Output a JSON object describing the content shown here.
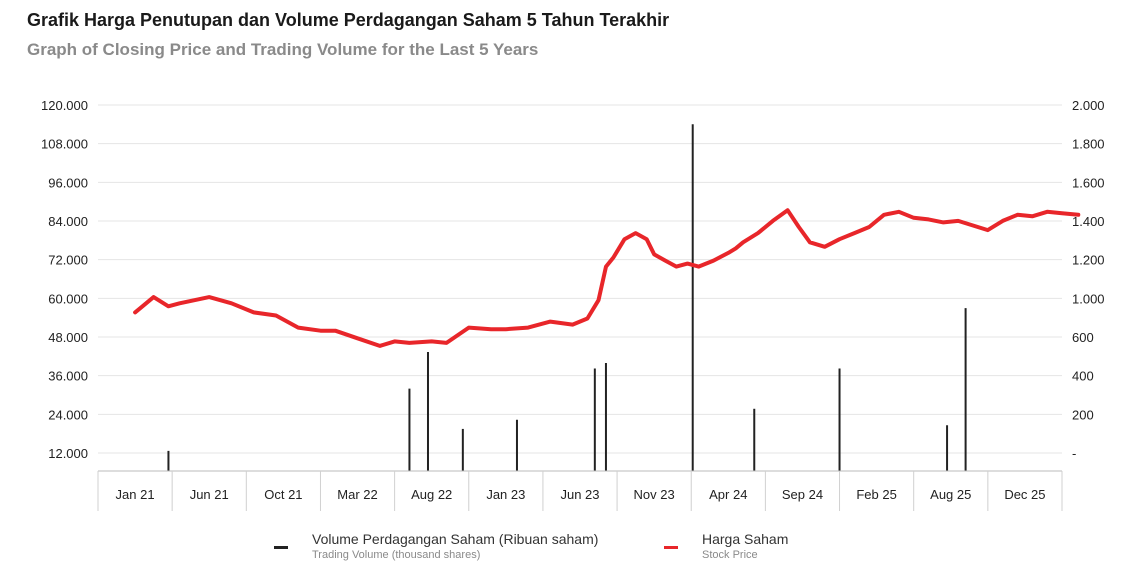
{
  "header": {
    "title": "Grafik Harga Penutupan dan Volume Perdagangan Saham 5 Tahun Terakhir",
    "subtitle": "Graph of Closing Price and Trading Volume for the Last 5 Years"
  },
  "legend": {
    "volume": {
      "label": "Volume Perdagangan Saham (Ribuan saham)",
      "sublabel": "Trading Volume (thousand shares)",
      "color": "#222222"
    },
    "price": {
      "label": "Harga Saham",
      "sublabel": "Stock Price",
      "color": "#e8262a"
    }
  },
  "chart_data": {
    "type": "line",
    "x_tick_labels": [
      "Jan 21",
      "Jun 21",
      "Oct 21",
      "Mar 22",
      "Aug 22",
      "Jan 23",
      "Jun 23",
      "Nov 23",
      "Apr 24",
      "Sep 24",
      "Feb 25",
      "Aug 25",
      "Dec 25"
    ],
    "left_axis": {
      "ticks": [
        "120.000",
        "108.000",
        "96.000",
        "84.000",
        "72.000",
        "60.000",
        "48.000",
        "36.000",
        "24.000",
        "12.000"
      ],
      "ylim": [
        0,
        120000
      ]
    },
    "right_axis": {
      "ticks": [
        "2.000",
        "1.800",
        "1.600",
        "1.400",
        "1.200",
        "1.000",
        "600",
        "400",
        "200",
        "-"
      ],
      "ylim": [
        0,
        2000
      ]
    },
    "grid": true,
    "legend_position": "bottom",
    "series": [
      {
        "name": "Harga Saham",
        "axis": "left",
        "color": "#e8262a",
        "x": [
          0,
          0.1,
          0.25,
          0.45,
          0.6,
          1.0,
          1.3,
          1.6,
          1.9,
          2.2,
          2.5,
          2.7,
          3.0,
          3.3,
          3.5,
          3.7,
          4.0,
          4.2,
          4.5,
          4.8,
          5.0,
          5.3,
          5.6,
          5.9,
          6.1,
          6.25,
          6.35,
          6.45,
          6.6,
          6.75,
          6.9,
          7.0,
          7.15,
          7.3,
          7.45,
          7.6,
          7.8,
          8.0,
          8.1,
          8.2,
          8.4,
          8.6,
          8.8,
          8.95,
          9.1,
          9.3,
          9.5,
          9.7,
          9.9,
          10.1,
          10.3,
          10.5,
          10.7,
          10.9,
          11.1,
          11.3,
          11.5,
          11.7,
          11.9,
          12.1,
          12.3,
          12.5,
          12.72
        ],
        "y": [
          52000,
          54000,
          57000,
          54000,
          55000,
          57000,
          55000,
          52000,
          51000,
          47000,
          46000,
          46000,
          43500,
          41000,
          42500,
          42000,
          42500,
          42000,
          47000,
          46500,
          46500,
          47000,
          49000,
          48000,
          50000,
          56000,
          67000,
          70000,
          76000,
          78000,
          76000,
          71000,
          69000,
          67000,
          68000,
          67000,
          69000,
          71500,
          73000,
          75000,
          78000,
          82000,
          85500,
          80000,
          75000,
          73500,
          76000,
          78000,
          80000,
          84000,
          85000,
          83000,
          82500,
          81500,
          82000,
          80500,
          79000,
          82000,
          84000,
          83500,
          85000,
          84500,
          84000
        ]
      },
      {
        "name": "Volume Perdagangan Saham",
        "axis": "right",
        "color": "#222222",
        "x": [
          0.45,
          3.7,
          3.95,
          4.42,
          5.15,
          6.2,
          6.35,
          7.52,
          8.35,
          9.5,
          10.95,
          11.2
        ],
        "y": [
          110,
          450,
          650,
          230,
          280,
          560,
          590,
          1895,
          340,
          560,
          250,
          890
        ]
      }
    ]
  }
}
